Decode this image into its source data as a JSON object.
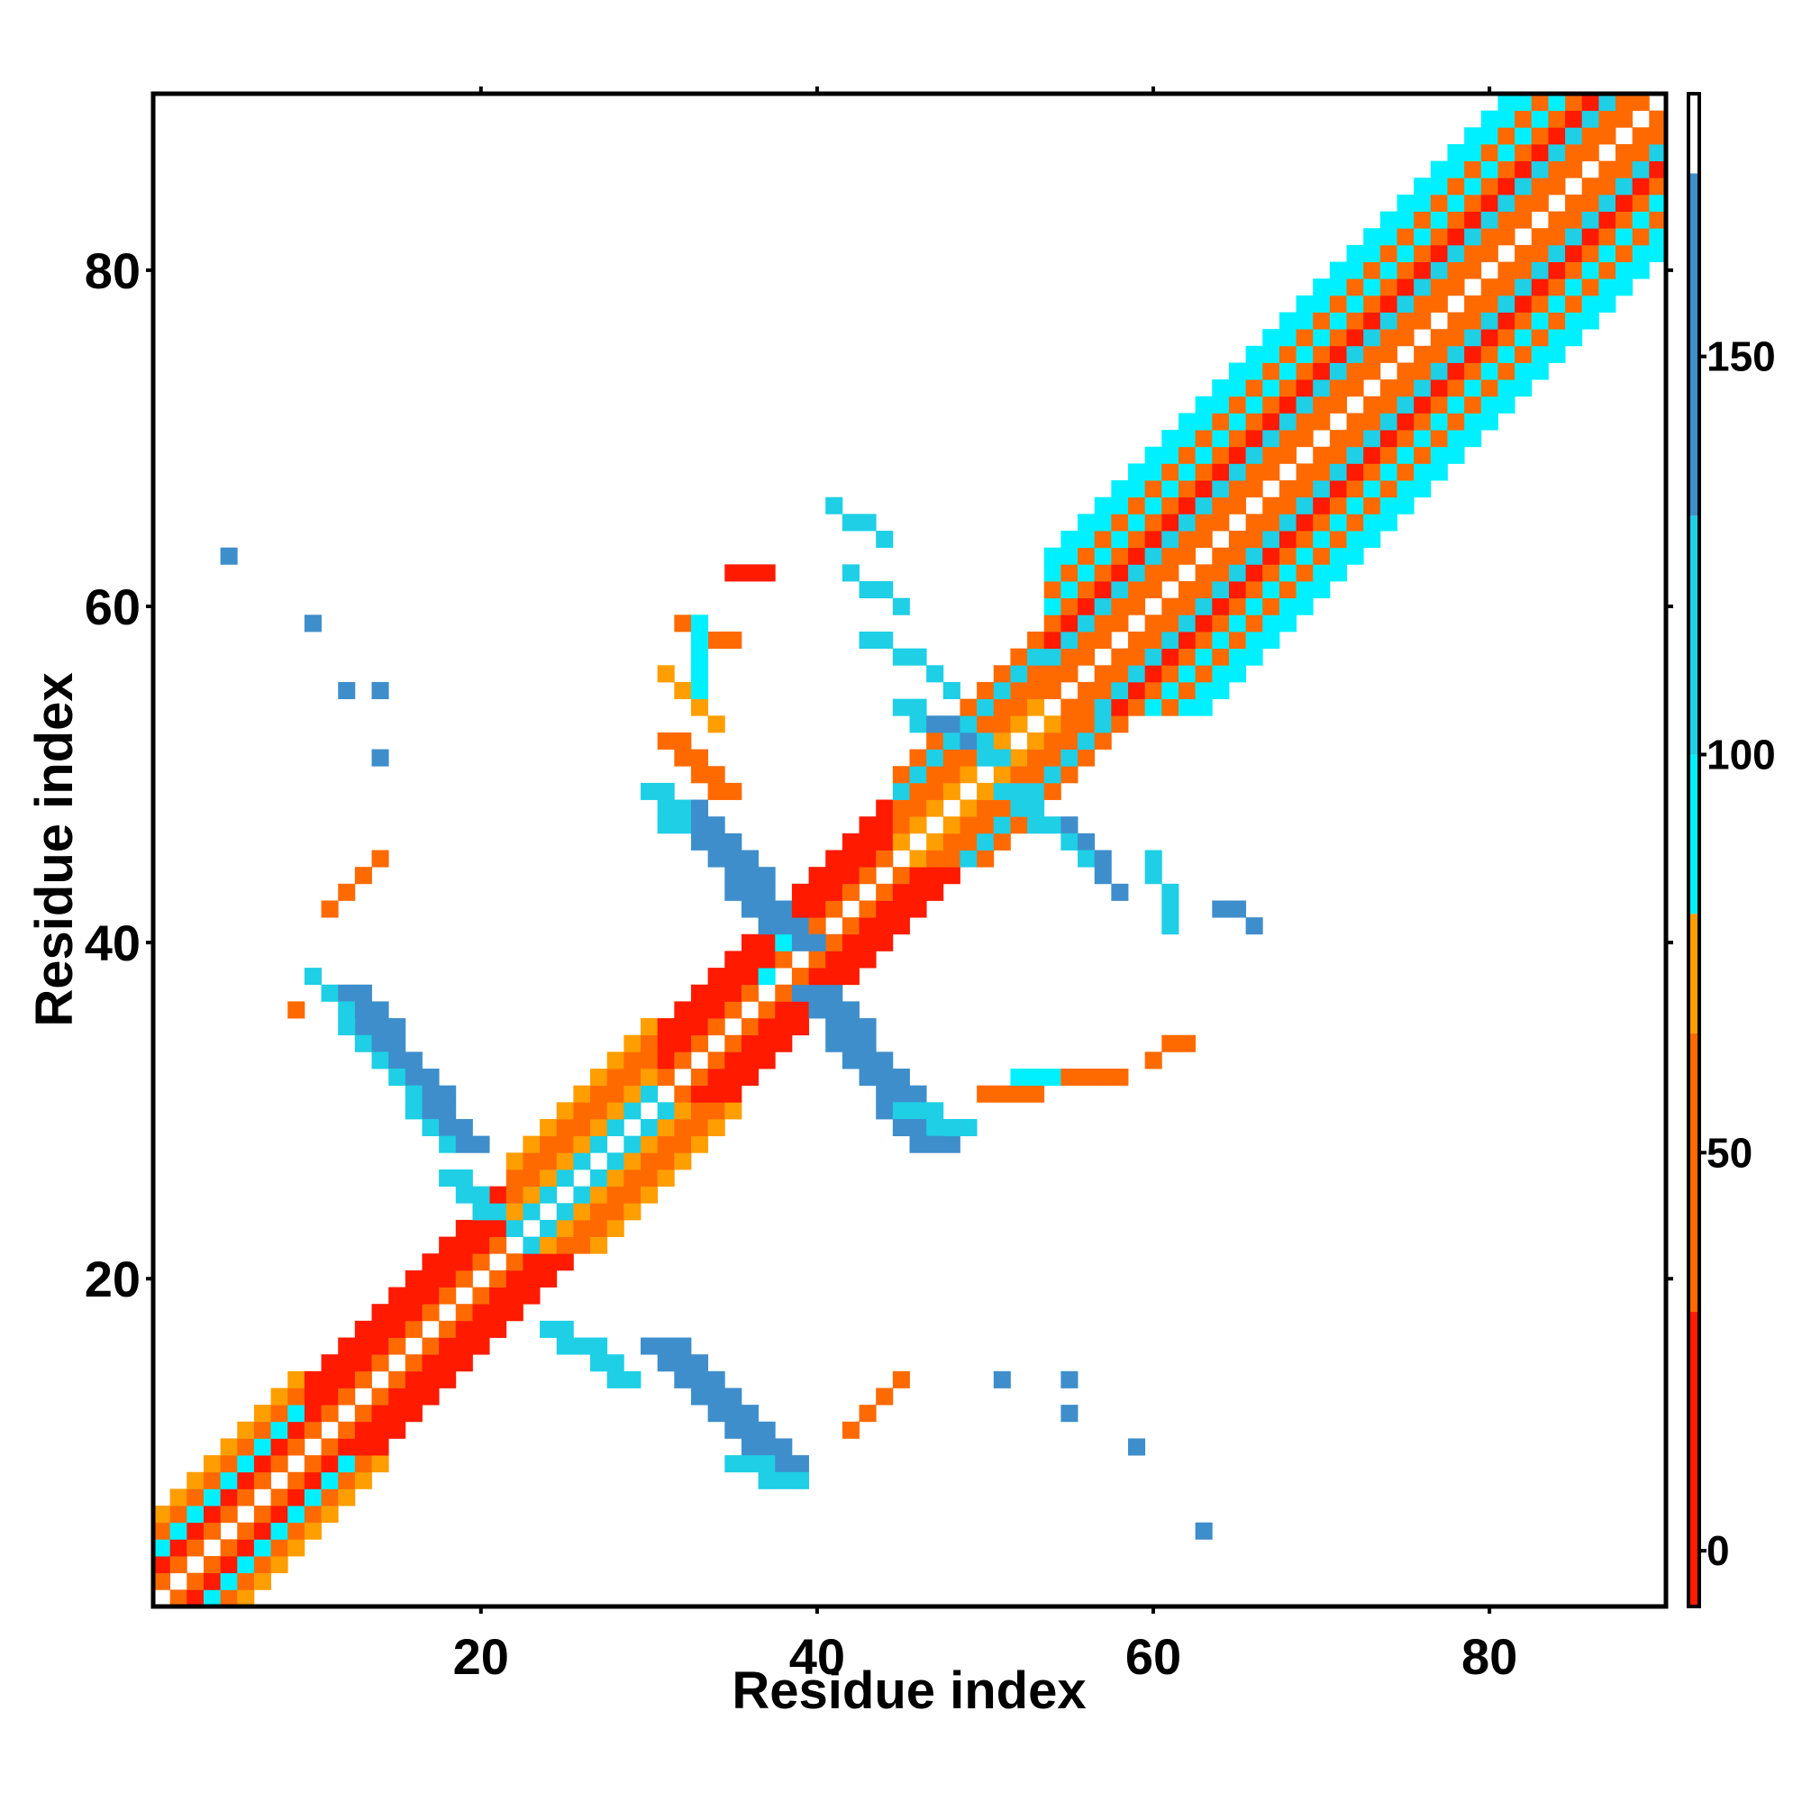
{
  "chart_data": {
    "type": "heatmap",
    "title": "",
    "xlabel": "Residue index",
    "ylabel": "Residue index",
    "xlim": [
      0.5,
      90.5
    ],
    "ylim": [
      0.5,
      90.5
    ],
    "xticks": [
      20,
      40,
      60,
      80
    ],
    "yticks": [
      20,
      40,
      60,
      80
    ],
    "xtick_labels": [
      "20",
      "40",
      "60",
      "80"
    ],
    "ytick_labels": [
      "20",
      "40",
      "60",
      "80"
    ],
    "grid": false,
    "legend": "colorbar-right",
    "colorbar": {
      "range": [
        -7,
        183
      ],
      "ticks": [
        0,
        50,
        100,
        150
      ],
      "tick_labels": [
        "0",
        "50",
        "100",
        "150"
      ],
      "bands": [
        {
          "from": -7,
          "to": 30,
          "color": "#ff1a00"
        },
        {
          "from": 30,
          "to": 65,
          "color": "#ff6a00"
        },
        {
          "from": 65,
          "to": 80,
          "color": "#ff9e00"
        },
        {
          "from": 80,
          "to": 100,
          "color": "#00f0ff"
        },
        {
          "from": 100,
          "to": 130,
          "color": "#1ecfe6"
        },
        {
          "from": 130,
          "to": 173,
          "color": "#3e8ecb"
        },
        {
          "from": 173,
          "to": 183,
          "color": "#ffffff"
        }
      ]
    },
    "category_colors": {
      "red": "#ff1a00",
      "dark-orange": "#ff6a00",
      "orange": "#ff9e00",
      "cyan": "#00f0ff",
      "light-blue": "#1ecfe6",
      "steel-blue": "#3e8ecb"
    },
    "diagonal_bands": [
      {
        "from": 1,
        "to": 9,
        "pattern": [
          [
            1,
            "dark-orange"
          ],
          [
            2,
            "red"
          ],
          [
            3,
            "cyan"
          ],
          [
            4,
            "dark-orange"
          ],
          [
            5,
            "orange"
          ]
        ]
      },
      {
        "from": 10,
        "to": 21,
        "pattern": [
          [
            1,
            "dark-orange"
          ],
          [
            2,
            "red"
          ],
          [
            3,
            "red"
          ],
          [
            4,
            "red"
          ]
        ]
      },
      {
        "from": 22,
        "to": 30,
        "pattern": [
          [
            1,
            "light-blue"
          ],
          [
            2,
            "orange"
          ],
          [
            3,
            "dark-orange"
          ],
          [
            4,
            "dark-orange"
          ],
          [
            5,
            "orange"
          ]
        ]
      },
      {
        "from": 31,
        "to": 44,
        "pattern": [
          [
            1,
            "dark-orange"
          ],
          [
            2,
            "red"
          ],
          [
            3,
            "red"
          ],
          [
            4,
            "red"
          ]
        ]
      },
      {
        "from": 45,
        "to": 53,
        "pattern": [
          [
            1,
            "orange"
          ],
          [
            2,
            "dark-orange"
          ],
          [
            3,
            "dark-orange"
          ],
          [
            4,
            "light-blue"
          ],
          [
            5,
            "dark-orange"
          ]
        ]
      },
      {
        "from": 54,
        "to": 90,
        "pattern": [
          [
            1,
            "dark-orange"
          ],
          [
            2,
            "dark-orange"
          ],
          [
            3,
            "light-blue"
          ],
          [
            4,
            "red"
          ],
          [
            5,
            "dark-orange"
          ],
          [
            6,
            "cyan"
          ],
          [
            7,
            "dark-orange"
          ],
          [
            8,
            "cyan"
          ],
          [
            9,
            "cyan"
          ]
        ]
      }
    ],
    "segments": [
      {
        "from": [
          11,
          37
        ],
        "to": [
          18,
          28
        ],
        "width": 3,
        "color": "steel-blue"
      },
      {
        "from": [
          10,
          38
        ],
        "to": [
          18,
          28
        ],
        "width": 1,
        "color": "light-blue"
      },
      {
        "from": [
          18,
          26
        ],
        "to": [
          20,
          24
        ],
        "width": 2,
        "color": "light-blue"
      },
      {
        "from": [
          9,
          36
        ],
        "to": [
          9,
          36
        ],
        "width": 1,
        "color": "dark-orange"
      },
      {
        "from": [
          31,
          48
        ],
        "to": [
          38,
          40
        ],
        "width": 3,
        "color": "steel-blue"
      },
      {
        "from": [
          30,
          49
        ],
        "to": [
          31,
          47
        ],
        "width": 2,
        "color": "light-blue"
      },
      {
        "from": [
          31,
          52
        ],
        "to": [
          34,
          49
        ],
        "width": 2,
        "color": "dark-orange"
      },
      {
        "from": [
          31,
          56
        ],
        "to": [
          34,
          53
        ],
        "width": 1,
        "color": "orange"
      },
      {
        "from": [
          32,
          59
        ],
        "to": [
          35,
          58
        ],
        "width": 1,
        "color": "dark-orange"
      },
      {
        "from": [
          35,
          62
        ],
        "to": [
          37,
          62
        ],
        "width": 1,
        "color": "red"
      },
      {
        "from": [
          33,
          59
        ],
        "to": [
          33,
          55
        ],
        "width": 1,
        "color": "cyan"
      },
      {
        "from": [
          39,
          37
        ],
        "to": [
          46,
          28
        ],
        "width": 3,
        "color": "steel-blue"
      },
      {
        "from": [
          45,
          30
        ],
        "to": [
          48,
          29
        ],
        "width": 2,
        "color": "light-blue"
      },
      {
        "from": [
          50,
          31
        ],
        "to": [
          58,
          32
        ],
        "width": 1,
        "color": "dark-orange"
      },
      {
        "from": [
          52,
          32
        ],
        "to": [
          54,
          32
        ],
        "width": 1,
        "color": "cyan"
      },
      {
        "from": [
          60,
          33
        ],
        "to": [
          62,
          34
        ],
        "width": 1,
        "color": "dark-orange"
      },
      {
        "from": [
          24,
          17
        ],
        "to": [
          28,
          14
        ],
        "width": 2,
        "color": "light-blue"
      },
      {
        "from": [
          30,
          16
        ],
        "to": [
          37,
          9
        ],
        "width": 3,
        "color": "steel-blue"
      },
      {
        "from": [
          35,
          9
        ],
        "to": [
          38,
          8
        ],
        "width": 2,
        "color": "light-blue"
      },
      {
        "from": [
          41,
          66
        ],
        "to": [
          44,
          64
        ],
        "width": 1,
        "color": "light-blue"
      },
      {
        "from": [
          42,
          62
        ],
        "to": [
          45,
          60
        ],
        "width": 1,
        "color": "light-blue"
      },
      {
        "from": [
          43,
          58
        ],
        "to": [
          47,
          56
        ],
        "width": 1,
        "color": "light-blue"
      },
      {
        "from": [
          45,
          54
        ],
        "to": [
          50,
          51
        ],
        "width": 2,
        "color": "light-blue"
      },
      {
        "from": [
          47,
          53
        ],
        "to": [
          49,
          52
        ],
        "width": 1,
        "color": "steel-blue"
      },
      {
        "from": [
          51,
          49
        ],
        "to": [
          56,
          45
        ],
        "width": 2,
        "color": "light-blue"
      },
      {
        "from": [
          55,
          47
        ],
        "to": [
          58,
          43
        ],
        "width": 1,
        "color": "steel-blue"
      },
      {
        "from": [
          60,
          45
        ],
        "to": [
          61,
          41
        ],
        "width": 1,
        "color": "light-blue"
      },
      {
        "from": [
          64,
          42
        ],
        "to": [
          66,
          41
        ],
        "width": 1,
        "color": "steel-blue"
      },
      {
        "from": [
          42,
          11
        ],
        "to": [
          45,
          14
        ],
        "width": 1,
        "color": "dark-orange"
      },
      {
        "from": [
          11,
          42
        ],
        "to": [
          14,
          45
        ],
        "width": 1,
        "color": "dark-orange"
      }
    ],
    "points": [
      {
        "x": 5,
        "y": 63,
        "color": "steel-blue"
      },
      {
        "x": 10,
        "y": 59,
        "color": "steel-blue"
      },
      {
        "x": 12,
        "y": 55,
        "color": "steel-blue"
      },
      {
        "x": 14,
        "y": 55,
        "color": "steel-blue"
      },
      {
        "x": 14,
        "y": 51,
        "color": "steel-blue"
      },
      {
        "x": 51,
        "y": 14,
        "color": "steel-blue"
      },
      {
        "x": 55,
        "y": 14,
        "color": "steel-blue"
      },
      {
        "x": 55,
        "y": 12,
        "color": "steel-blue"
      },
      {
        "x": 59,
        "y": 10,
        "color": "steel-blue"
      },
      {
        "x": 63,
        "y": 5,
        "color": "steel-blue"
      },
      {
        "x": 48,
        "y": 55,
        "color": "light-blue"
      },
      {
        "x": 38,
        "y": 40,
        "color": "cyan"
      },
      {
        "x": 37,
        "y": 38,
        "color": "cyan"
      }
    ]
  }
}
